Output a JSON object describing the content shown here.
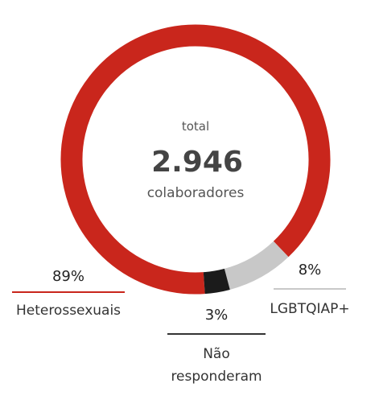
{
  "chart_data": {
    "type": "donut",
    "center_top": "total",
    "center_value": "2.946",
    "center_bottom": "colaboradores",
    "categories": [
      "Heterossexuais",
      "LGBTQIAP+",
      "Não responderam"
    ],
    "values": [
      89,
      8,
      3
    ],
    "value_labels": [
      "89%",
      "8%",
      "3%"
    ],
    "colors": [
      "#c9261c",
      "#c8c8c8",
      "#1b1b1b"
    ]
  }
}
